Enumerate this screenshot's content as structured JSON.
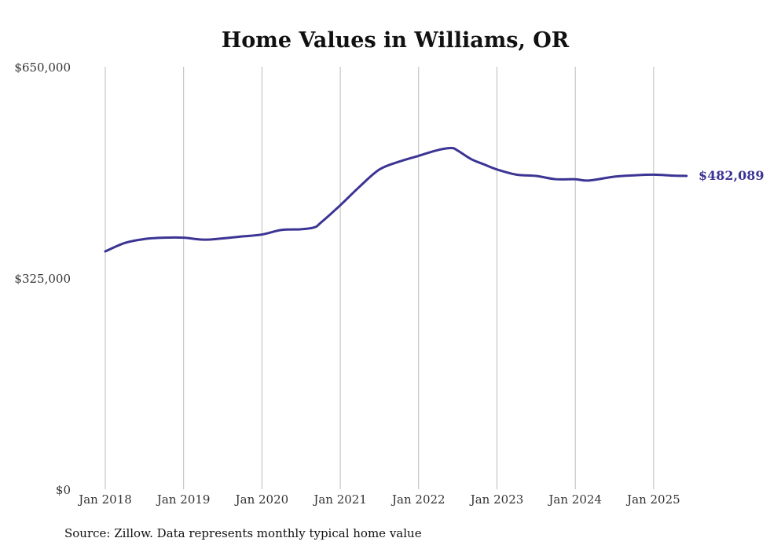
{
  "chart_data": {
    "type": "line",
    "title": "Home Values in Williams, OR",
    "xlabel": "",
    "ylabel": "",
    "ylim": [
      0,
      650000
    ],
    "y_ticks": [
      {
        "value": 0,
        "label": "$0"
      },
      {
        "value": 325000,
        "label": "$325,000"
      },
      {
        "value": 650000,
        "label": "$650,000"
      }
    ],
    "x_ticks": [
      {
        "value": 2018,
        "label": "Jan 2018"
      },
      {
        "value": 2019,
        "label": "Jan 2019"
      },
      {
        "value": 2020,
        "label": "Jan 2020"
      },
      {
        "value": 2021,
        "label": "Jan 2021"
      },
      {
        "value": 2022,
        "label": "Jan 2022"
      },
      {
        "value": 2023,
        "label": "Jan 2023"
      },
      {
        "value": 2024,
        "label": "Jan 2024"
      },
      {
        "value": 2025,
        "label": "Jan 2025"
      }
    ],
    "grid": "vertical",
    "series": [
      {
        "name": "Typical home value",
        "color": "#3b3494",
        "x": [
          2018.0,
          2018.25,
          2018.5,
          2018.75,
          2019.0,
          2019.25,
          2019.5,
          2019.75,
          2020.0,
          2020.25,
          2020.5,
          2020.67,
          2020.75,
          2021.0,
          2021.25,
          2021.5,
          2021.75,
          2022.0,
          2022.25,
          2022.42,
          2022.5,
          2022.67,
          2022.83,
          2023.0,
          2023.25,
          2023.5,
          2023.75,
          2024.0,
          2024.17,
          2024.5,
          2024.75,
          2025.0,
          2025.25,
          2025.42
        ],
        "values": [
          366000,
          379000,
          385000,
          387000,
          387000,
          384000,
          386000,
          389000,
          392000,
          399000,
          400000,
          403000,
          410000,
          437000,
          466000,
          492000,
          504000,
          513000,
          522000,
          525000,
          521000,
          508000,
          500000,
          492000,
          484000,
          482000,
          477000,
          477000,
          475000,
          481000,
          483000,
          484000,
          482500,
          482089
        ]
      }
    ],
    "end_label": "$482,089",
    "source": "Source: Zillow. Data represents monthly typical home value"
  }
}
